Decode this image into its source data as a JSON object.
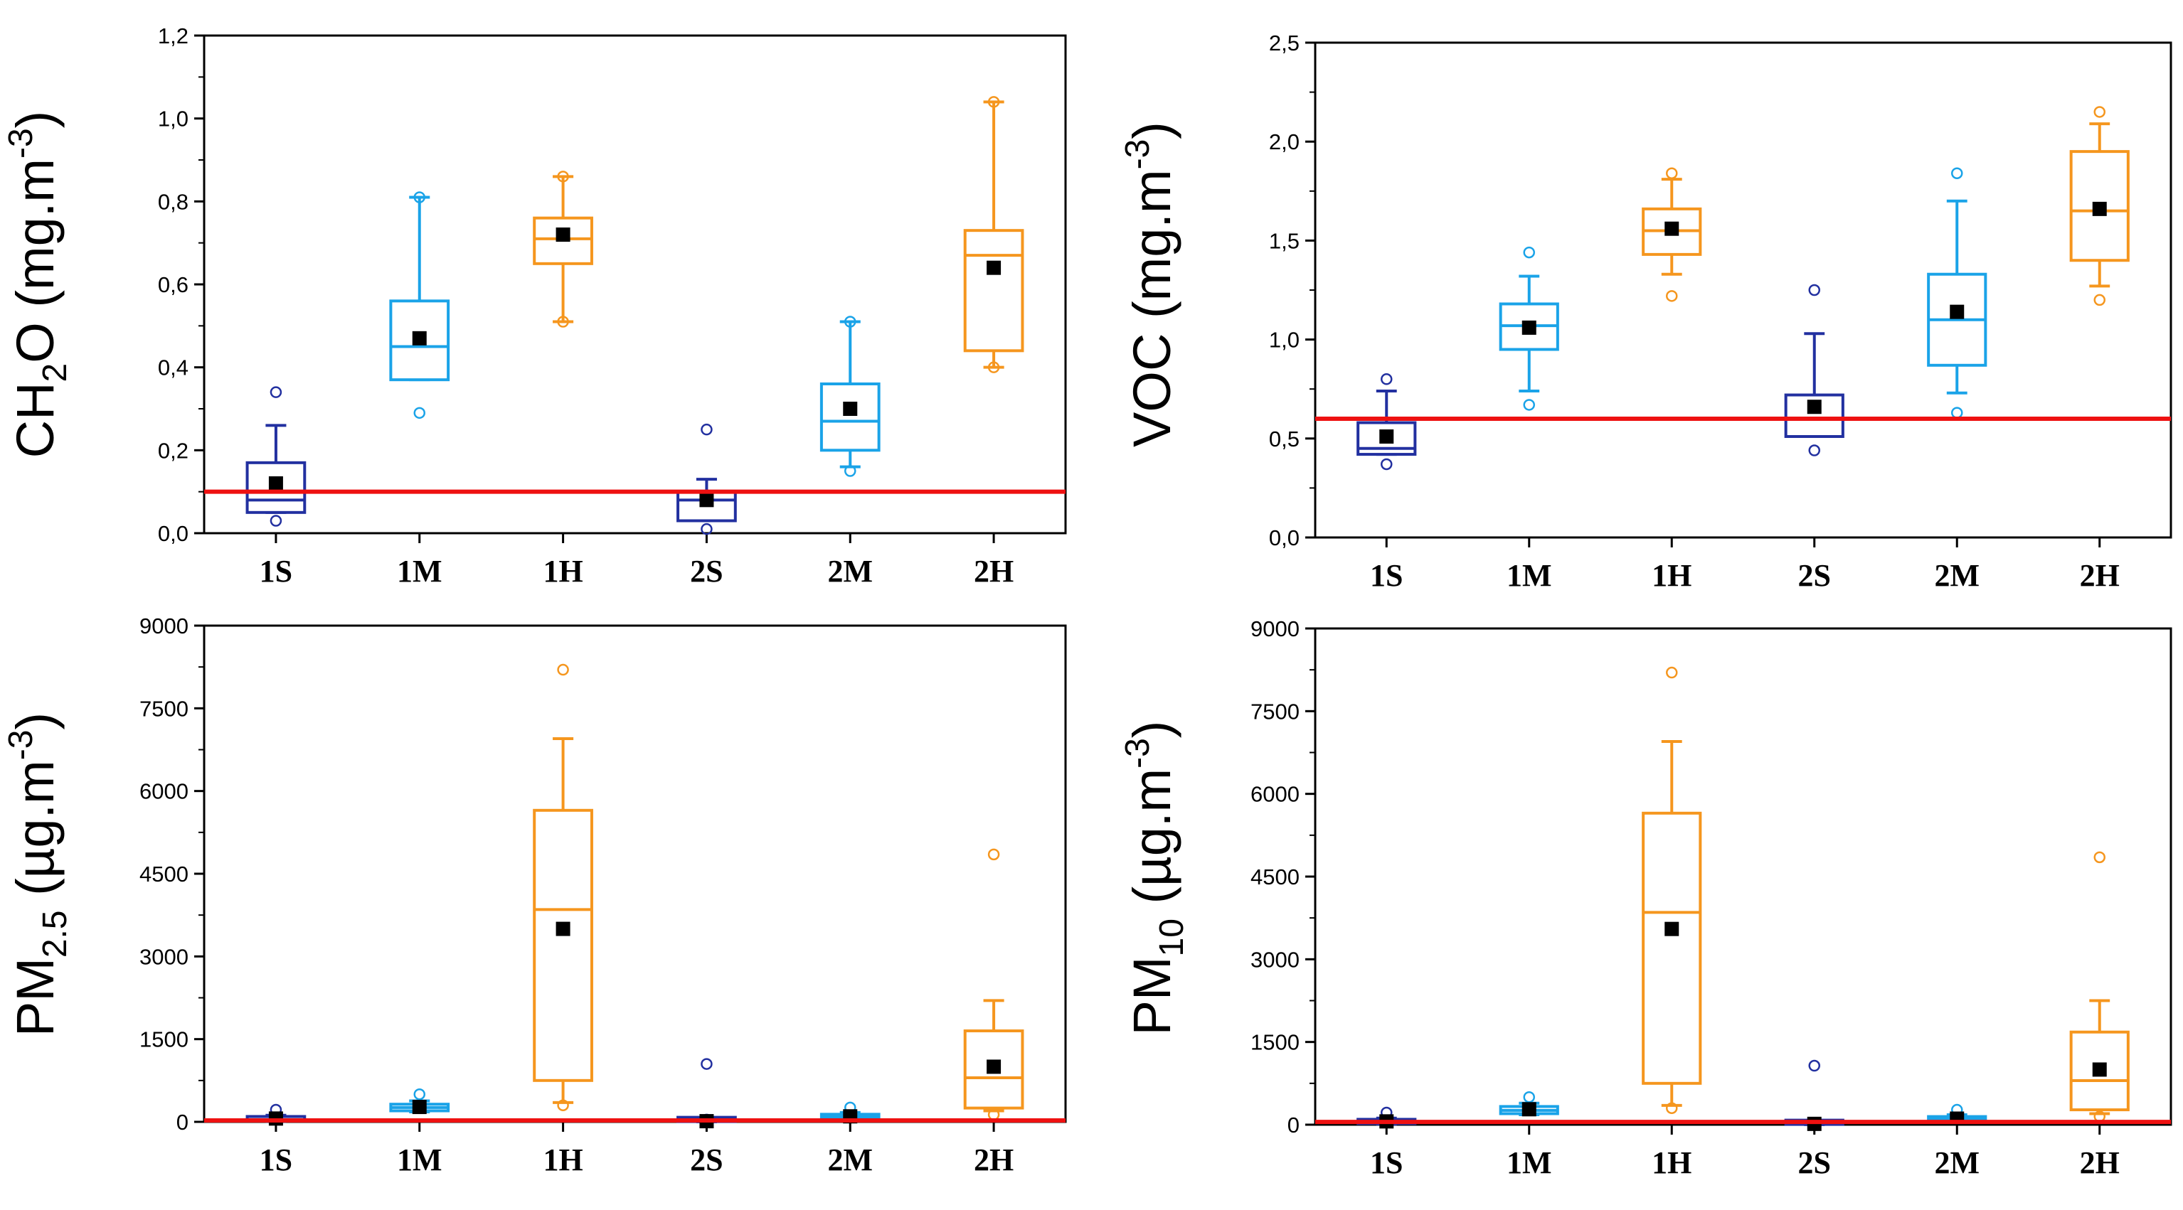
{
  "chart_data": [
    {
      "type": "box",
      "id": "ch2o",
      "ylabel": {
        "main": "CH",
        "sub": "2",
        "rest": "O (mg.m",
        "sup": "-3",
        "close": ")"
      },
      "ylim": [
        0,
        1.2
      ],
      "yticks": [
        0,
        0.2,
        0.4,
        0.6,
        0.8,
        1.0,
        1.2
      ],
      "ytick_labels": [
        "0,0",
        "0,2",
        "0,4",
        "0,6",
        "0,8",
        "1,0",
        "1,2"
      ],
      "categories": [
        "1S",
        "1M",
        "1H",
        "2S",
        "2M",
        "2H"
      ],
      "limit": 0.1,
      "boxes": [
        {
          "q1": 0.05,
          "median": 0.08,
          "q3": 0.17,
          "whisker_low": 0.05,
          "whisker_high": 0.26,
          "mean": 0.12,
          "outliers": [
            0.34,
            0.03
          ],
          "color": "#2230a0"
        },
        {
          "q1": 0.37,
          "median": 0.45,
          "q3": 0.56,
          "whisker_low": 0.37,
          "whisker_high": 0.81,
          "mean": 0.47,
          "outliers": [
            0.81,
            0.29
          ],
          "color": "#1aa3e8"
        },
        {
          "q1": 0.65,
          "median": 0.71,
          "q3": 0.76,
          "whisker_low": 0.51,
          "whisker_high": 0.86,
          "mean": 0.72,
          "outliers": [
            0.86,
            0.51
          ],
          "color": "#f5961e"
        },
        {
          "q1": 0.03,
          "median": 0.08,
          "q3": 0.1,
          "whisker_low": 0.03,
          "whisker_high": 0.13,
          "mean": 0.08,
          "outliers": [
            0.25,
            0.01
          ],
          "color": "#2230a0"
        },
        {
          "q1": 0.2,
          "median": 0.27,
          "q3": 0.36,
          "whisker_low": 0.16,
          "whisker_high": 0.51,
          "mean": 0.3,
          "outliers": [
            0.51,
            0.15
          ],
          "color": "#1aa3e8"
        },
        {
          "q1": 0.44,
          "median": 0.67,
          "q3": 0.73,
          "whisker_low": 0.4,
          "whisker_high": 1.04,
          "mean": 0.64,
          "outliers": [
            1.04,
            0.4
          ],
          "color": "#f5961e"
        }
      ]
    },
    {
      "type": "box",
      "id": "voc",
      "ylabel": {
        "main": "VOC (mg.m",
        "sup": "-3",
        "close": ")"
      },
      "ylim": [
        0,
        2.5
      ],
      "yticks": [
        0,
        0.5,
        1.0,
        1.5,
        2.0,
        2.5
      ],
      "ytick_labels": [
        "0,0",
        "0,5",
        "1,0",
        "1,5",
        "2,0",
        "2,5"
      ],
      "categories": [
        "1S",
        "1M",
        "1H",
        "2S",
        "2M",
        "2H"
      ],
      "limit": 0.6,
      "boxes": [
        {
          "q1": 0.42,
          "median": 0.45,
          "q3": 0.58,
          "whisker_low": 0.42,
          "whisker_high": 0.74,
          "mean": 0.51,
          "outliers": [
            0.8,
            0.37
          ],
          "color": "#2230a0"
        },
        {
          "q1": 0.95,
          "median": 1.07,
          "q3": 1.18,
          "whisker_low": 0.74,
          "whisker_high": 1.32,
          "mean": 1.06,
          "outliers": [
            1.44,
            0.67
          ],
          "color": "#1aa3e8"
        },
        {
          "q1": 1.43,
          "median": 1.55,
          "q3": 1.66,
          "whisker_low": 1.33,
          "whisker_high": 1.81,
          "mean": 1.56,
          "outliers": [
            1.84,
            1.22
          ],
          "color": "#f5961e"
        },
        {
          "q1": 0.51,
          "median": 0.6,
          "q3": 0.72,
          "whisker_low": 0.51,
          "whisker_high": 1.03,
          "mean": 0.66,
          "outliers": [
            1.25,
            0.44
          ],
          "color": "#2230a0"
        },
        {
          "q1": 0.87,
          "median": 1.1,
          "q3": 1.33,
          "whisker_low": 0.73,
          "whisker_high": 1.7,
          "mean": 1.14,
          "outliers": [
            1.84,
            0.63
          ],
          "color": "#1aa3e8"
        },
        {
          "q1": 1.4,
          "median": 1.65,
          "q3": 1.95,
          "whisker_low": 1.27,
          "whisker_high": 2.09,
          "mean": 1.66,
          "outliers": [
            2.15,
            1.2
          ],
          "color": "#f5961e"
        }
      ]
    },
    {
      "type": "box",
      "id": "pm25",
      "ylabel": {
        "main": "PM",
        "sub": "2.5",
        "rest": " (µg.m",
        "sup": "-3",
        "close": ")"
      },
      "ylim": [
        0,
        9000
      ],
      "yticks": [
        0,
        1500,
        3000,
        4500,
        6000,
        7500,
        9000
      ],
      "ytick_labels": [
        "0",
        "1500",
        "3000",
        "4500",
        "6000",
        "7500",
        "9000"
      ],
      "categories": [
        "1S",
        "1M",
        "1H",
        "2S",
        "2M",
        "2H"
      ],
      "limit": 25,
      "boxes": [
        {
          "q1": 20,
          "median": 40,
          "q3": 80,
          "whisker_low": 10,
          "whisker_high": 120,
          "mean": 60,
          "outliers": [
            220
          ],
          "color": "#2230a0"
        },
        {
          "q1": 200,
          "median": 260,
          "q3": 320,
          "whisker_low": 180,
          "whisker_high": 380,
          "mean": 270,
          "outliers": [
            500
          ],
          "color": "#1aa3e8"
        },
        {
          "q1": 750,
          "median": 3850,
          "q3": 5650,
          "whisker_low": 350,
          "whisker_high": 6950,
          "mean": 3500,
          "outliers": [
            8200,
            300
          ],
          "color": "#f5961e"
        },
        {
          "q1": 5,
          "median": 10,
          "q3": 20,
          "whisker_low": 2,
          "whisker_high": 30,
          "mean": 12,
          "outliers": [
            1050,
            40
          ],
          "color": "#2230a0"
        },
        {
          "q1": 60,
          "median": 90,
          "q3": 130,
          "whisker_low": 40,
          "whisker_high": 170,
          "mean": 100,
          "outliers": [
            260
          ],
          "color": "#1aa3e8"
        },
        {
          "q1": 250,
          "median": 800,
          "q3": 1650,
          "whisker_low": 200,
          "whisker_high": 2200,
          "mean": 1000,
          "outliers": [
            4850,
            130
          ],
          "color": "#f5961e"
        }
      ]
    },
    {
      "type": "box",
      "id": "pm10",
      "ylabel": {
        "main": "PM",
        "sub": "10",
        "rest": " (µg.m",
        "sup": "-3",
        "close": ")"
      },
      "ylim": [
        0,
        9000
      ],
      "yticks": [
        0,
        1500,
        3000,
        4500,
        6000,
        7500,
        9000
      ],
      "ytick_labels": [
        "0",
        "1500",
        "3000",
        "4500",
        "6000",
        "7500",
        "9000"
      ],
      "categories": [
        "1S",
        "1M",
        "1H",
        "2S",
        "2M",
        "2H"
      ],
      "limit": 50,
      "boxes": [
        {
          "q1": 20,
          "median": 40,
          "q3": 80,
          "whisker_low": 10,
          "whisker_high": 120,
          "mean": 60,
          "outliers": [
            220
          ],
          "color": "#2230a0"
        },
        {
          "q1": 200,
          "median": 260,
          "q3": 330,
          "whisker_low": 180,
          "whisker_high": 390,
          "mean": 280,
          "outliers": [
            500
          ],
          "color": "#1aa3e8"
        },
        {
          "q1": 750,
          "median": 3850,
          "q3": 5650,
          "whisker_low": 350,
          "whisker_high": 6950,
          "mean": 3550,
          "outliers": [
            8200,
            300
          ],
          "color": "#f5961e"
        },
        {
          "q1": 5,
          "median": 12,
          "q3": 25,
          "whisker_low": 2,
          "whisker_high": 35,
          "mean": 15,
          "outliers": [
            1070
          ],
          "color": "#2230a0"
        },
        {
          "q1": 70,
          "median": 100,
          "q3": 140,
          "whisker_low": 50,
          "whisker_high": 180,
          "mean": 110,
          "outliers": [
            270
          ],
          "color": "#1aa3e8"
        },
        {
          "q1": 270,
          "median": 800,
          "q3": 1680,
          "whisker_low": 200,
          "whisker_high": 2250,
          "mean": 1000,
          "outliers": [
            4850,
            150
          ],
          "color": "#f5961e"
        }
      ]
    }
  ],
  "colors": {
    "limit_line": "#ee1111",
    "mean_marker": "#000000",
    "axis": "#000000"
  }
}
